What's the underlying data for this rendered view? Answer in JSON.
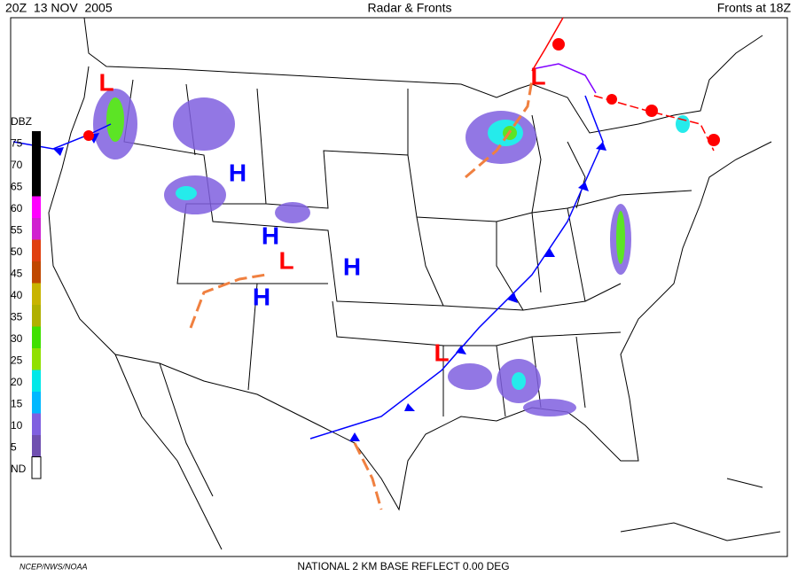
{
  "header": {
    "time": "20Z  13 NOV  2005",
    "title": "Radar & Fronts",
    "fronts_time": "Fronts at 18Z"
  },
  "legend": {
    "title": "DBZ",
    "levels": [
      {
        "label": "75",
        "color": "#000000"
      },
      {
        "label": "70",
        "color": "#000000"
      },
      {
        "label": "65",
        "color": "#000000"
      },
      {
        "label": "60",
        "color": "#ff00ff"
      },
      {
        "label": "55",
        "color": "#d020d0"
      },
      {
        "label": "50",
        "color": "#e04010"
      },
      {
        "label": "45",
        "color": "#c04800"
      },
      {
        "label": "40",
        "color": "#c8b400"
      },
      {
        "label": "35",
        "color": "#b0b000"
      },
      {
        "label": "30",
        "color": "#40e000"
      },
      {
        "label": "25",
        "color": "#90e000"
      },
      {
        "label": "20",
        "color": "#00e8e8"
      },
      {
        "label": "15",
        "color": "#00b8ff"
      },
      {
        "label": "10",
        "color": "#8060e0"
      },
      {
        "label": "5",
        "color": "#7050b0"
      },
      {
        "label": "ND",
        "color": "#ffffff"
      }
    ]
  },
  "pressure_centers": [
    {
      "label": "L",
      "color": "#ff0000"
    },
    {
      "label": "L",
      "color": "#ff0000"
    },
    {
      "label": "H",
      "color": "#0000ff"
    },
    {
      "label": "H",
      "color": "#0000ff"
    },
    {
      "label": "L",
      "color": "#ff0000"
    },
    {
      "label": "H",
      "color": "#0000ff"
    },
    {
      "label": "H",
      "color": "#0000ff"
    },
    {
      "label": "L",
      "color": "#ff0000"
    }
  ],
  "footer": {
    "source": "NCEP/NWS/NOAA",
    "product": "NATIONAL 2 KM BASE REFLECT 0.00 DEG"
  }
}
